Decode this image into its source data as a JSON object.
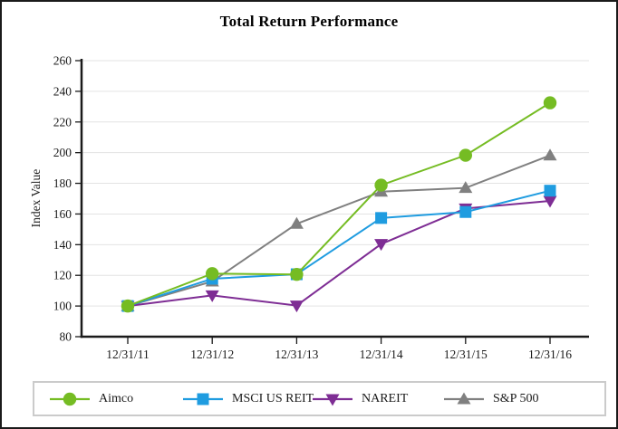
{
  "title": "Total Return Performance",
  "chart_data": {
    "type": "line",
    "title": "Total Return Performance",
    "xlabel": "",
    "ylabel": "Index Value",
    "categories": [
      "12/31/11",
      "12/31/12",
      "12/31/13",
      "12/31/14",
      "12/31/15",
      "12/31/16"
    ],
    "ylim": [
      80,
      260
    ],
    "ytick_step": 20,
    "yticks": [
      80,
      100,
      120,
      140,
      160,
      180,
      200,
      220,
      240,
      260
    ],
    "grid": true,
    "legend_position": "bottom",
    "series": [
      {
        "name": "Aimco",
        "color": "#75bc23",
        "marker": "circle",
        "values": [
          100.0,
          121.1,
          120.6,
          178.8,
          198.3,
          232.5
        ]
      },
      {
        "name": "MSCI US REIT",
        "color": "#1f9ce0",
        "marker": "square",
        "values": [
          100.0,
          117.8,
          120.7,
          157.4,
          161.3,
          175.2
        ]
      },
      {
        "name": "NAREIT",
        "color": "#7e2d94",
        "marker": "triangle-down",
        "values": [
          100.0,
          106.9,
          100.3,
          140.4,
          163.6,
          168.5
        ]
      },
      {
        "name": "S&P 500",
        "color": "#808080",
        "marker": "triangle-up",
        "values": [
          100.0,
          116.0,
          153.6,
          174.6,
          177.0,
          198.2
        ]
      }
    ],
    "colors": {
      "axis": "#1a1a1a",
      "grid": "#e3e3e3",
      "tick_label": "#1a1a1a"
    }
  }
}
